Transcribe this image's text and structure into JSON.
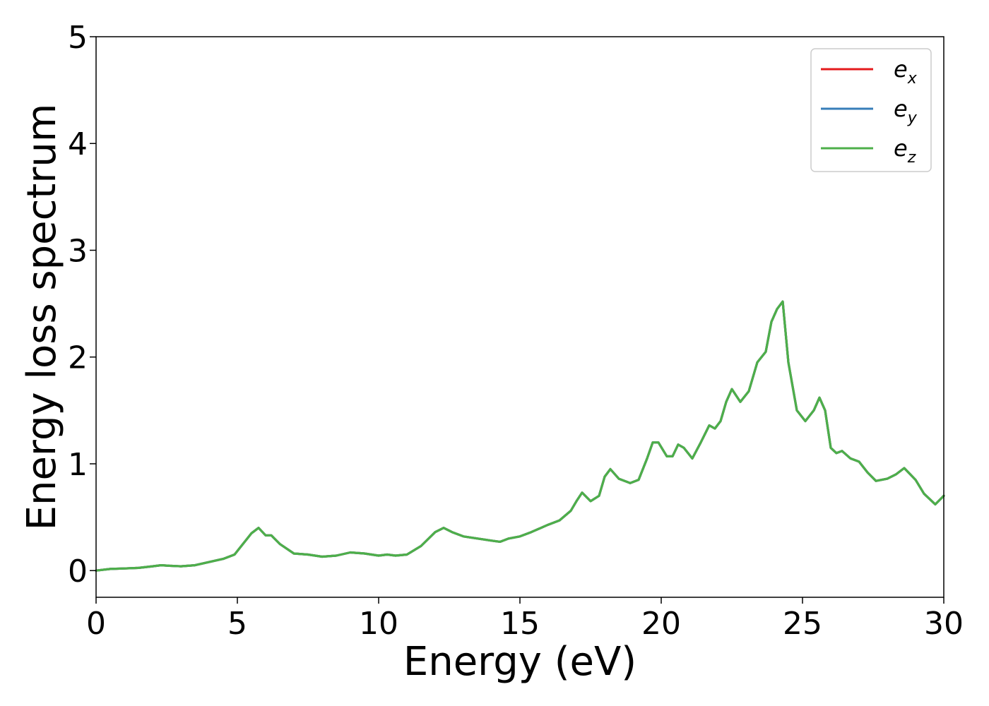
{
  "chart_data": {
    "type": "line",
    "xlabel": "Energy (eV)",
    "ylabel": "Energy loss spectrum",
    "xlim": [
      0,
      30
    ],
    "ylim": [
      -0.25,
      5
    ],
    "xticks": [
      "0",
      "5",
      "10",
      "15",
      "20",
      "25",
      "30"
    ],
    "yticks": [
      "0",
      "1",
      "2",
      "3",
      "4",
      "5"
    ],
    "grid": false,
    "legend_position": "top-right",
    "series": [
      {
        "name": "e_x",
        "legend_base": "e",
        "legend_sub": "x",
        "color": "#e41a1c",
        "x": [
          0,
          0.5,
          1,
          1.5,
          2,
          2.3,
          2.6,
          3,
          3.5,
          4,
          4.5,
          4.9,
          5.2,
          5.5,
          5.75,
          6,
          6.2,
          6.5,
          7,
          7.5,
          8,
          8.5,
          9,
          9.5,
          10,
          10.3,
          10.6,
          11,
          11.5,
          12,
          12.3,
          12.6,
          13,
          13.5,
          14,
          14.3,
          14.6,
          15,
          15.4,
          16,
          16.4,
          16.8,
          17,
          17.2,
          17.5,
          17.8,
          18,
          18.2,
          18.5,
          18.9,
          19.2,
          19.5,
          19.7,
          19.9,
          20.2,
          20.4,
          20.6,
          20.8,
          21.1,
          21.4,
          21.7,
          21.9,
          22.1,
          22.3,
          22.5,
          22.8,
          23.1,
          23.4,
          23.7,
          23.9,
          24.1,
          24.3,
          24.5,
          24.8,
          25.1,
          25.4,
          25.6,
          25.8,
          26,
          26.2,
          26.4,
          26.7,
          27,
          27.3,
          27.6,
          28,
          28.3,
          28.6,
          29,
          29.3,
          29.7,
          30
        ],
        "y": [
          0.0,
          0.015,
          0.02,
          0.025,
          0.04,
          0.05,
          0.045,
          0.04,
          0.05,
          0.08,
          0.11,
          0.15,
          0.25,
          0.35,
          0.4,
          0.33,
          0.33,
          0.25,
          0.16,
          0.15,
          0.13,
          0.14,
          0.17,
          0.16,
          0.14,
          0.15,
          0.14,
          0.15,
          0.23,
          0.36,
          0.4,
          0.36,
          0.32,
          0.3,
          0.28,
          0.27,
          0.3,
          0.32,
          0.36,
          0.43,
          0.47,
          0.56,
          0.65,
          0.73,
          0.65,
          0.7,
          0.88,
          0.95,
          0.86,
          0.82,
          0.85,
          1.05,
          1.2,
          1.2,
          1.07,
          1.07,
          1.18,
          1.15,
          1.05,
          1.2,
          1.36,
          1.33,
          1.4,
          1.58,
          1.7,
          1.58,
          1.68,
          1.95,
          2.05,
          2.33,
          2.45,
          2.52,
          1.95,
          1.5,
          1.4,
          1.5,
          1.62,
          1.5,
          1.15,
          1.1,
          1.12,
          1.05,
          1.02,
          0.92,
          0.84,
          0.86,
          0.9,
          0.96,
          0.85,
          0.72,
          0.62,
          0.7
        ]
      },
      {
        "name": "e_y",
        "legend_base": "e",
        "legend_sub": "y",
        "color": "#377eb8",
        "x": [
          0,
          0.5,
          1,
          1.5,
          2,
          2.3,
          2.6,
          3,
          3.5,
          4,
          4.5,
          4.9,
          5.2,
          5.5,
          5.75,
          6,
          6.2,
          6.5,
          7,
          7.5,
          8,
          8.5,
          9,
          9.5,
          10,
          10.3,
          10.6,
          11,
          11.5,
          12,
          12.3,
          12.6,
          13,
          13.5,
          14,
          14.3,
          14.6,
          15,
          15.4,
          16,
          16.4,
          16.8,
          17,
          17.2,
          17.5,
          17.8,
          18,
          18.2,
          18.5,
          18.9,
          19.2,
          19.5,
          19.7,
          19.9,
          20.2,
          20.4,
          20.6,
          20.8,
          21.1,
          21.4,
          21.7,
          21.9,
          22.1,
          22.3,
          22.5,
          22.8,
          23.1,
          23.4,
          23.7,
          23.9,
          24.1,
          24.3,
          24.5,
          24.8,
          25.1,
          25.4,
          25.6,
          25.8,
          26,
          26.2,
          26.4,
          26.7,
          27,
          27.3,
          27.6,
          28,
          28.3,
          28.6,
          29,
          29.3,
          29.7,
          30
        ],
        "y": [
          0.0,
          0.015,
          0.02,
          0.025,
          0.04,
          0.05,
          0.045,
          0.04,
          0.05,
          0.08,
          0.11,
          0.15,
          0.25,
          0.35,
          0.4,
          0.33,
          0.33,
          0.25,
          0.16,
          0.15,
          0.13,
          0.14,
          0.17,
          0.16,
          0.14,
          0.15,
          0.14,
          0.15,
          0.23,
          0.36,
          0.4,
          0.36,
          0.32,
          0.3,
          0.28,
          0.27,
          0.3,
          0.32,
          0.36,
          0.43,
          0.47,
          0.56,
          0.65,
          0.73,
          0.65,
          0.7,
          0.88,
          0.95,
          0.86,
          0.82,
          0.85,
          1.05,
          1.2,
          1.2,
          1.07,
          1.07,
          1.18,
          1.15,
          1.05,
          1.2,
          1.36,
          1.33,
          1.4,
          1.58,
          1.7,
          1.58,
          1.68,
          1.95,
          2.05,
          2.33,
          2.45,
          2.52,
          1.95,
          1.5,
          1.4,
          1.5,
          1.62,
          1.5,
          1.15,
          1.1,
          1.12,
          1.05,
          1.02,
          0.92,
          0.84,
          0.86,
          0.9,
          0.96,
          0.85,
          0.72,
          0.62,
          0.7
        ]
      },
      {
        "name": "e_z",
        "legend_base": "e",
        "legend_sub": "z",
        "color": "#4daf4a",
        "x": [
          0,
          0.5,
          1,
          1.5,
          2,
          2.3,
          2.6,
          3,
          3.5,
          4,
          4.5,
          4.9,
          5.2,
          5.5,
          5.75,
          6,
          6.2,
          6.5,
          7,
          7.5,
          8,
          8.5,
          9,
          9.5,
          10,
          10.3,
          10.6,
          11,
          11.5,
          12,
          12.3,
          12.6,
          13,
          13.5,
          14,
          14.3,
          14.6,
          15,
          15.4,
          16,
          16.4,
          16.8,
          17,
          17.2,
          17.5,
          17.8,
          18,
          18.2,
          18.5,
          18.9,
          19.2,
          19.5,
          19.7,
          19.9,
          20.2,
          20.4,
          20.6,
          20.8,
          21.1,
          21.4,
          21.7,
          21.9,
          22.1,
          22.3,
          22.5,
          22.8,
          23.1,
          23.4,
          23.7,
          23.9,
          24.1,
          24.3,
          24.5,
          24.8,
          25.1,
          25.4,
          25.6,
          25.8,
          26,
          26.2,
          26.4,
          26.7,
          27,
          27.3,
          27.6,
          28,
          28.3,
          28.6,
          29,
          29.3,
          29.7,
          30
        ],
        "y": [
          0.0,
          0.015,
          0.02,
          0.025,
          0.04,
          0.05,
          0.045,
          0.04,
          0.05,
          0.08,
          0.11,
          0.15,
          0.25,
          0.35,
          0.4,
          0.33,
          0.33,
          0.25,
          0.16,
          0.15,
          0.13,
          0.14,
          0.17,
          0.16,
          0.14,
          0.15,
          0.14,
          0.15,
          0.23,
          0.36,
          0.4,
          0.36,
          0.32,
          0.3,
          0.28,
          0.27,
          0.3,
          0.32,
          0.36,
          0.43,
          0.47,
          0.56,
          0.65,
          0.73,
          0.65,
          0.7,
          0.88,
          0.95,
          0.86,
          0.82,
          0.85,
          1.05,
          1.2,
          1.2,
          1.07,
          1.07,
          1.18,
          1.15,
          1.05,
          1.2,
          1.36,
          1.33,
          1.4,
          1.58,
          1.7,
          1.58,
          1.68,
          1.95,
          2.05,
          2.33,
          2.45,
          2.52,
          1.95,
          1.5,
          1.4,
          1.5,
          1.62,
          1.5,
          1.15,
          1.1,
          1.12,
          1.05,
          1.02,
          0.92,
          0.84,
          0.86,
          0.9,
          0.96,
          0.85,
          0.72,
          0.62,
          0.7
        ]
      }
    ]
  }
}
